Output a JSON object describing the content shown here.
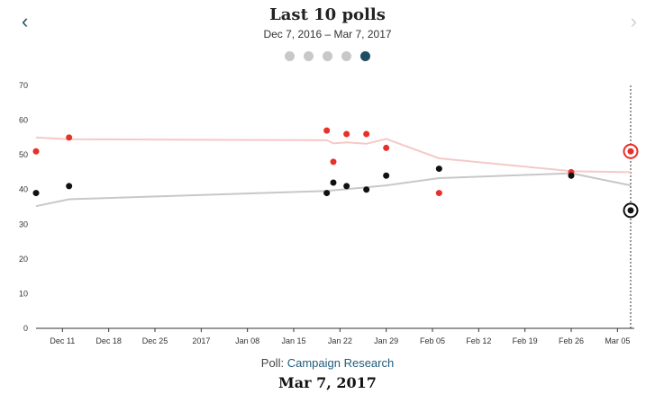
{
  "header": {
    "title": "Last 10 polls",
    "date_range": "Dec 7, 2016 – Mar 7, 2017",
    "prev_icon": "‹",
    "next_icon": "›",
    "pager": {
      "count": 5,
      "active_index": 4
    }
  },
  "footer": {
    "poll_label": "Poll:",
    "poll_name": "Campaign Research",
    "selected_date": "Mar 7, 2017"
  },
  "chart_data": {
    "type": "scatter",
    "title": "Last 10 polls",
    "subtitle": "Dec 7, 2016 – Mar 7, 2017",
    "xlabel": "",
    "ylabel": "",
    "xlim": [
      "2016-12-07",
      "2017-03-07"
    ],
    "ylim": [
      0,
      70
    ],
    "yticks": [
      0,
      10,
      20,
      30,
      40,
      50,
      60,
      70
    ],
    "xticks": [
      {
        "date": "2016-12-11",
        "label": "Dec 11"
      },
      {
        "date": "2016-12-18",
        "label": "Dec 18"
      },
      {
        "date": "2016-12-25",
        "label": "Dec 25"
      },
      {
        "date": "2017-01-01",
        "label": "2017"
      },
      {
        "date": "2017-01-08",
        "label": "Jan 08"
      },
      {
        "date": "2017-01-15",
        "label": "Jan 15"
      },
      {
        "date": "2017-01-22",
        "label": "Jan 22"
      },
      {
        "date": "2017-01-29",
        "label": "Jan 29"
      },
      {
        "date": "2017-02-05",
        "label": "Feb 05"
      },
      {
        "date": "2017-02-12",
        "label": "Feb 12"
      },
      {
        "date": "2017-02-19",
        "label": "Feb 19"
      },
      {
        "date": "2017-02-26",
        "label": "Feb 26"
      },
      {
        "date": "2017-03-05",
        "label": "Mar 05"
      }
    ],
    "grid": false,
    "legend": "none",
    "series": [
      {
        "color": "#e8302a",
        "trend_color": "#f6c9c6",
        "points": [
          {
            "x": "2016-12-07",
            "y": 51
          },
          {
            "x": "2016-12-12",
            "y": 55
          },
          {
            "x": "2017-01-20",
            "y": 57
          },
          {
            "x": "2017-01-21",
            "y": 48
          },
          {
            "x": "2017-01-23",
            "y": 56
          },
          {
            "x": "2017-01-26",
            "y": 56
          },
          {
            "x": "2017-01-29",
            "y": 52
          },
          {
            "x": "2017-02-06",
            "y": 39
          },
          {
            "x": "2017-02-26",
            "y": 45
          }
        ],
        "trend": [
          {
            "x": "2016-12-07",
            "y": 55
          },
          {
            "x": "2016-12-12",
            "y": 54.5
          },
          {
            "x": "2017-01-20",
            "y": 54.2
          },
          {
            "x": "2017-01-21",
            "y": 53.3
          },
          {
            "x": "2017-01-23",
            "y": 53.6
          },
          {
            "x": "2017-01-26",
            "y": 53.2
          },
          {
            "x": "2017-01-29",
            "y": 54.6
          },
          {
            "x": "2017-02-06",
            "y": 49
          },
          {
            "x": "2017-02-26",
            "y": 45.3
          },
          {
            "x": "2017-03-07",
            "y": 45
          }
        ],
        "selected": {
          "x": "2017-03-07",
          "y": 51
        }
      },
      {
        "color": "#111111",
        "trend_color": "#c8c8c8",
        "points": [
          {
            "x": "2016-12-07",
            "y": 39
          },
          {
            "x": "2016-12-12",
            "y": 41
          },
          {
            "x": "2017-01-20",
            "y": 39
          },
          {
            "x": "2017-01-21",
            "y": 42
          },
          {
            "x": "2017-01-23",
            "y": 41
          },
          {
            "x": "2017-01-26",
            "y": 40
          },
          {
            "x": "2017-01-29",
            "y": 44
          },
          {
            "x": "2017-02-06",
            "y": 46
          },
          {
            "x": "2017-02-26",
            "y": 44
          }
        ],
        "trend": [
          {
            "x": "2016-12-07",
            "y": 35.2
          },
          {
            "x": "2016-12-12",
            "y": 37.2
          },
          {
            "x": "2017-01-20",
            "y": 39.6
          },
          {
            "x": "2017-01-29",
            "y": 41.2
          },
          {
            "x": "2017-02-06",
            "y": 43.3
          },
          {
            "x": "2017-02-26",
            "y": 44.7
          },
          {
            "x": "2017-03-07",
            "y": 41.2
          }
        ],
        "selected": {
          "x": "2017-03-07",
          "y": 34
        }
      }
    ],
    "marker_line": "2017-03-07"
  }
}
